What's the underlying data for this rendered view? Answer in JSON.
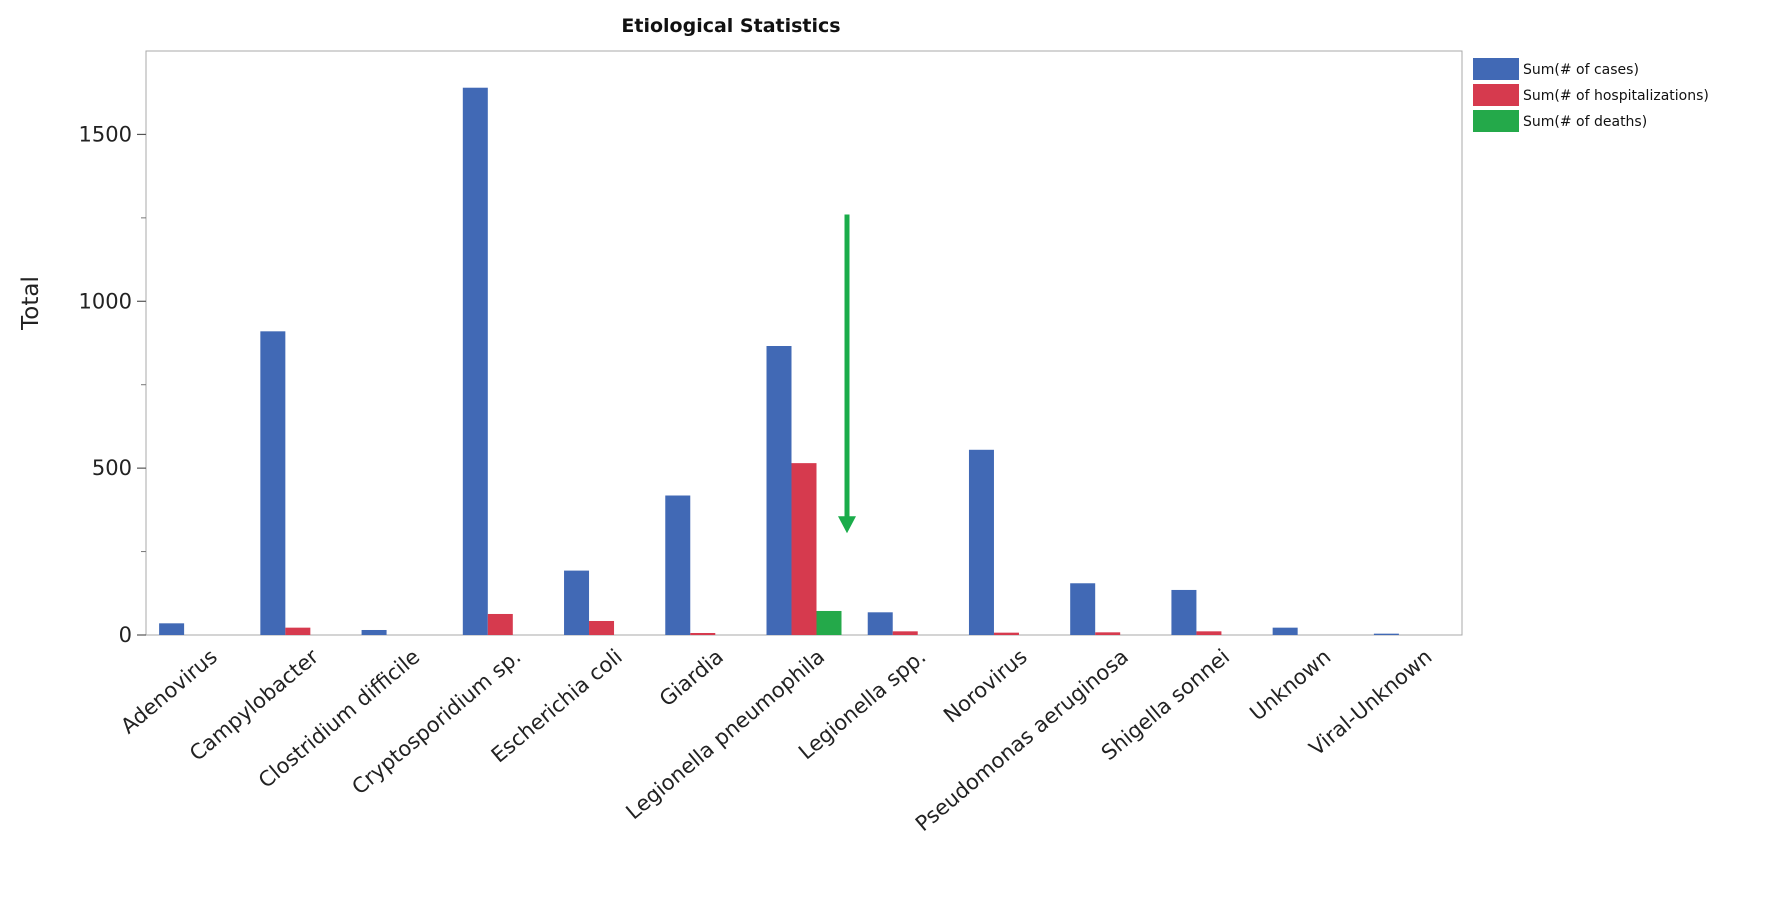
{
  "chart_data": {
    "type": "bar",
    "title": "Etiological Statistics",
    "xlabel": "",
    "ylabel": "Total",
    "ylim": [
      0,
      1750
    ],
    "yticks": [
      0,
      500,
      1000,
      1500
    ],
    "grid": false,
    "legend_position": "top-right",
    "categories": [
      "Adenovirus",
      "Campylobacter",
      "Clostridium difficile",
      "Cryptosporidium sp.",
      "Escherichia coli",
      "Giardia",
      "Legionella pneumophila",
      "Legionella spp.",
      "Norovirus",
      "Pseudomonas aeruginosa",
      "Shigella sonnei",
      "Unknown",
      "Viral-Unknown"
    ],
    "series": [
      {
        "name": "Sum(# of cases)",
        "color": "#4169b5",
        "values": [
          35,
          910,
          15,
          1640,
          193,
          418,
          866,
          68,
          555,
          155,
          135,
          22,
          4
        ]
      },
      {
        "name": "Sum(# of hospitalizations)",
        "color": "#d63a4e",
        "values": [
          0,
          22,
          0,
          63,
          42,
          6,
          515,
          11,
          7,
          8,
          11,
          0,
          0
        ]
      },
      {
        "name": "Sum(# of deaths)",
        "color": "#24a94a",
        "values": [
          0,
          0,
          0,
          0,
          0,
          0,
          72,
          0,
          0,
          0,
          0,
          0,
          0
        ]
      }
    ],
    "annotation": {
      "type": "arrow",
      "color": "#1aac4a",
      "category": "Legionella pneumophila",
      "from_value": 1260,
      "to_value": 305
    }
  }
}
